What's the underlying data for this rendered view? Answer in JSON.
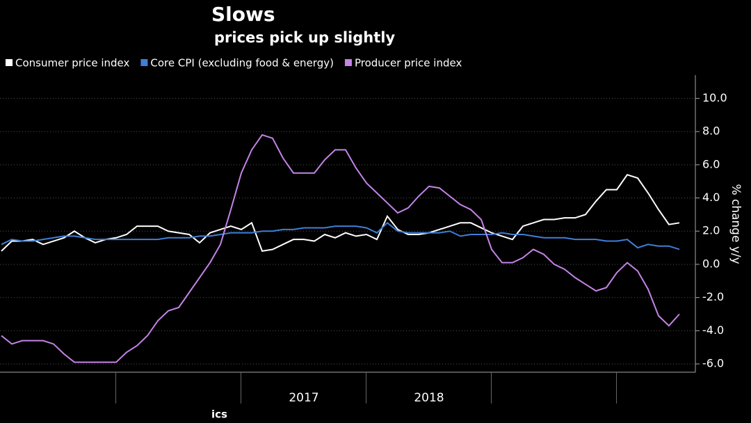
{
  "chart_data": {
    "type": "line",
    "title": "Slows",
    "subtitle": "prices pick up slightly",
    "source": "ics",
    "y_label": "% change y/y",
    "categories": [
      null,
      null,
      null,
      null,
      null,
      null,
      null,
      null,
      null,
      null,
      null,
      null,
      null,
      null,
      null,
      null,
      null,
      null,
      null,
      null,
      null,
      null,
      null,
      null,
      null,
      null,
      null,
      null,
      null,
      "2017",
      null,
      null,
      null,
      null,
      null,
      null,
      null,
      null,
      null,
      null,
      null,
      "2018",
      null,
      null,
      null,
      null,
      null,
      null,
      null,
      null,
      null,
      null,
      null,
      null,
      null,
      null,
      null,
      null,
      null,
      null,
      null,
      null,
      null,
      null,
      null,
      null
    ],
    "series": [
      {
        "name": "Consumer price index",
        "color": "#ffffff",
        "values": [
          0.8,
          1.4,
          1.4,
          1.5,
          1.2,
          1.4,
          1.6,
          2.0,
          1.6,
          1.3,
          1.5,
          1.6,
          1.8,
          2.3,
          2.3,
          2.3,
          2.0,
          1.9,
          1.8,
          1.3,
          1.9,
          2.1,
          2.3,
          2.1,
          2.5,
          0.8,
          0.9,
          1.2,
          1.5,
          1.5,
          1.4,
          1.8,
          1.6,
          1.9,
          1.7,
          1.8,
          1.5,
          2.9,
          2.1,
          1.8,
          1.8,
          1.9,
          2.1,
          2.3,
          2.5,
          2.5,
          2.2,
          1.9,
          1.7,
          1.5,
          2.3,
          2.5,
          2.7,
          2.7,
          2.8,
          2.8,
          3.0,
          3.8,
          4.5,
          4.5,
          5.4,
          5.2,
          4.3,
          3.3,
          2.4,
          2.5
        ]
      },
      {
        "name": "Core CPI (excluding food & energy)",
        "color": "#3f7fd8",
        "values": [
          1.2,
          1.5,
          1.4,
          1.4,
          1.5,
          1.6,
          1.7,
          1.7,
          1.6,
          1.5,
          1.5,
          1.5,
          1.5,
          1.5,
          1.5,
          1.5,
          1.6,
          1.6,
          1.6,
          1.7,
          1.7,
          1.8,
          1.9,
          1.9,
          1.9,
          2.0,
          2.0,
          2.1,
          2.1,
          2.2,
          2.2,
          2.2,
          2.3,
          2.3,
          2.3,
          2.2,
          1.9,
          2.5,
          2.0,
          1.9,
          1.9,
          1.9,
          1.9,
          2.0,
          1.7,
          1.8,
          1.8,
          1.8,
          1.9,
          1.8,
          1.8,
          1.7,
          1.6,
          1.6,
          1.6,
          1.5,
          1.5,
          1.5,
          1.4,
          1.4,
          1.5,
          1.0,
          1.2,
          1.1,
          1.1,
          0.9
        ]
      },
      {
        "name": "Producer price index",
        "color": "#c484e8",
        "values": [
          -4.3,
          -4.8,
          -4.6,
          -4.6,
          -4.6,
          -4.8,
          -5.4,
          -5.9,
          -5.9,
          -5.9,
          -5.9,
          -5.9,
          -5.3,
          -4.9,
          -4.3,
          -3.4,
          -2.8,
          -2.6,
          -1.7,
          -0.8,
          0.1,
          1.2,
          3.3,
          5.5,
          6.9,
          7.8,
          7.6,
          6.4,
          5.5,
          5.5,
          5.5,
          6.3,
          6.9,
          6.9,
          5.8,
          4.9,
          4.3,
          3.7,
          3.1,
          3.4,
          4.1,
          4.7,
          4.6,
          4.1,
          3.6,
          3.3,
          2.7,
          0.9,
          0.1,
          0.1,
          0.4,
          0.9,
          0.6,
          0.0,
          -0.3,
          -0.8,
          -1.2,
          -1.6,
          -1.4,
          -0.5,
          0.1,
          -0.4,
          -1.5,
          -3.1,
          -3.7,
          -3.0
        ]
      }
    ],
    "ylim": [
      -6.5,
      11.4
    ],
    "yticks": [
      {
        "value": -6,
        "label": "-6.0"
      },
      {
        "value": -4,
        "label": "-4.0"
      },
      {
        "value": -2,
        "label": "-2.0"
      },
      {
        "value": 0,
        "label": "0.0"
      },
      {
        "value": 2,
        "label": "2.0"
      },
      {
        "value": 4,
        "label": "4.0"
      },
      {
        "value": 6,
        "label": "6.0"
      },
      {
        "value": 8,
        "label": "8.0"
      },
      {
        "value": 10,
        "label": "10.0"
      }
    ],
    "grid": true
  }
}
